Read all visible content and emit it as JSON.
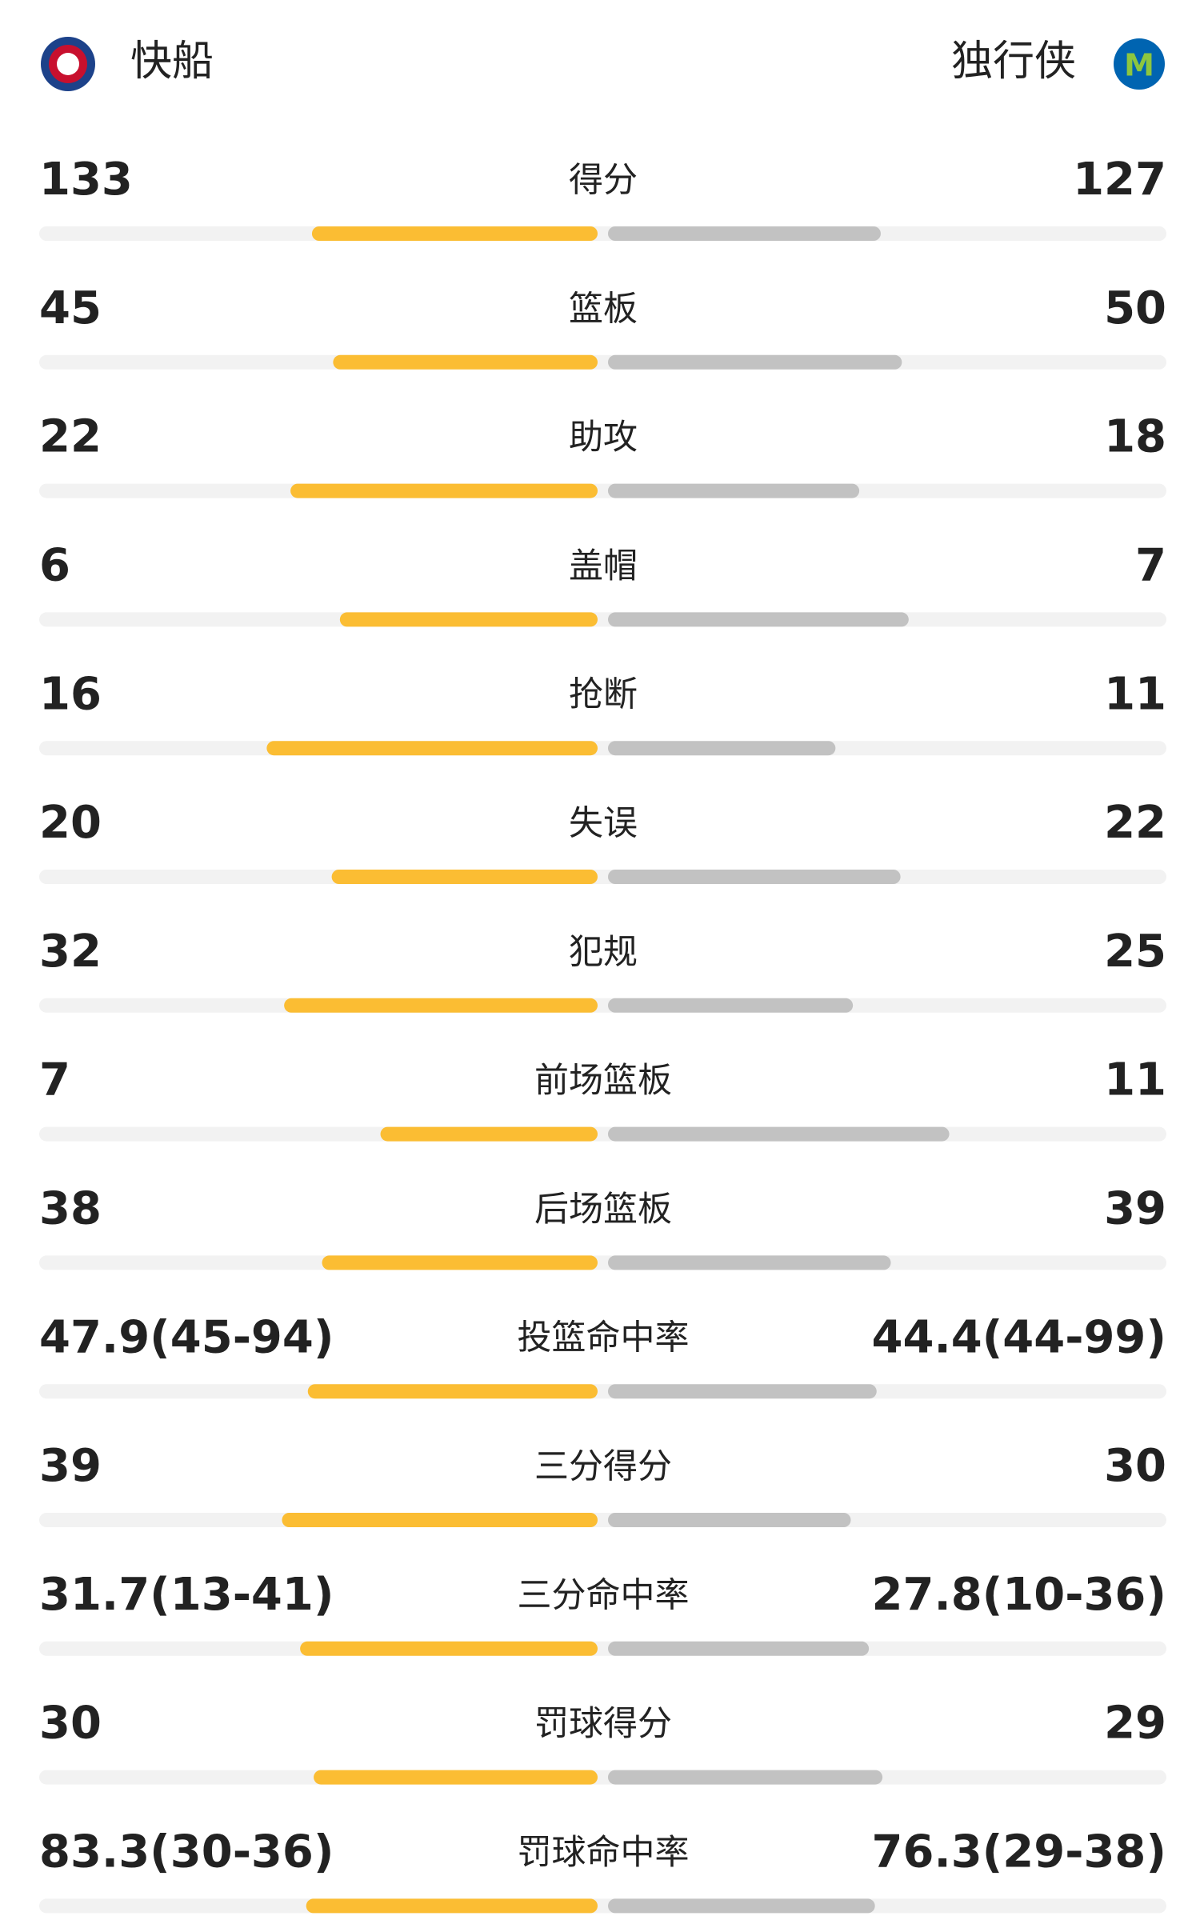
{
  "header": {
    "home": "快船",
    "away": "独行侠"
  },
  "rows": [
    {
      "label": "得分",
      "home": 133,
      "away": 127
    },
    {
      "label": "篮板",
      "home": 45,
      "away": 50
    },
    {
      "label": "助攻",
      "home": 22,
      "away": 18
    },
    {
      "label": "盖帽",
      "home": 6,
      "away": 7
    },
    {
      "label": "抢断",
      "home": 16,
      "away": 11
    },
    {
      "label": "失误",
      "home": 20,
      "away": 22
    },
    {
      "label": "犯规",
      "home": 32,
      "away": 25
    },
    {
      "label": "前场篮板",
      "home": 7,
      "away": 11
    },
    {
      "label": "后场篮板",
      "home": 38,
      "away": 39
    },
    {
      "label": "投篮命中率",
      "home": {
        "value": 47.9,
        "label": "47.9(45-94)"
      },
      "away": {
        "value": 44.4,
        "label": "44.4(44-99)"
      }
    },
    {
      "label": "三分得分",
      "home": 39,
      "away": 30
    },
    {
      "label": "三分命中率",
      "home": {
        "value": 31.7,
        "label": "31.7(13-41)"
      },
      "away": {
        "value": 27.8,
        "label": "27.8(10-36)"
      }
    },
    {
      "label": "罚球得分",
      "home": 30,
      "away": 29
    },
    {
      "label": "罚球命中率",
      "home": {
        "value": 83.3,
        "label": "83.3(30-36)"
      },
      "away": {
        "value": 76.3,
        "label": "76.3(29-38)"
      }
    }
  ]
}
